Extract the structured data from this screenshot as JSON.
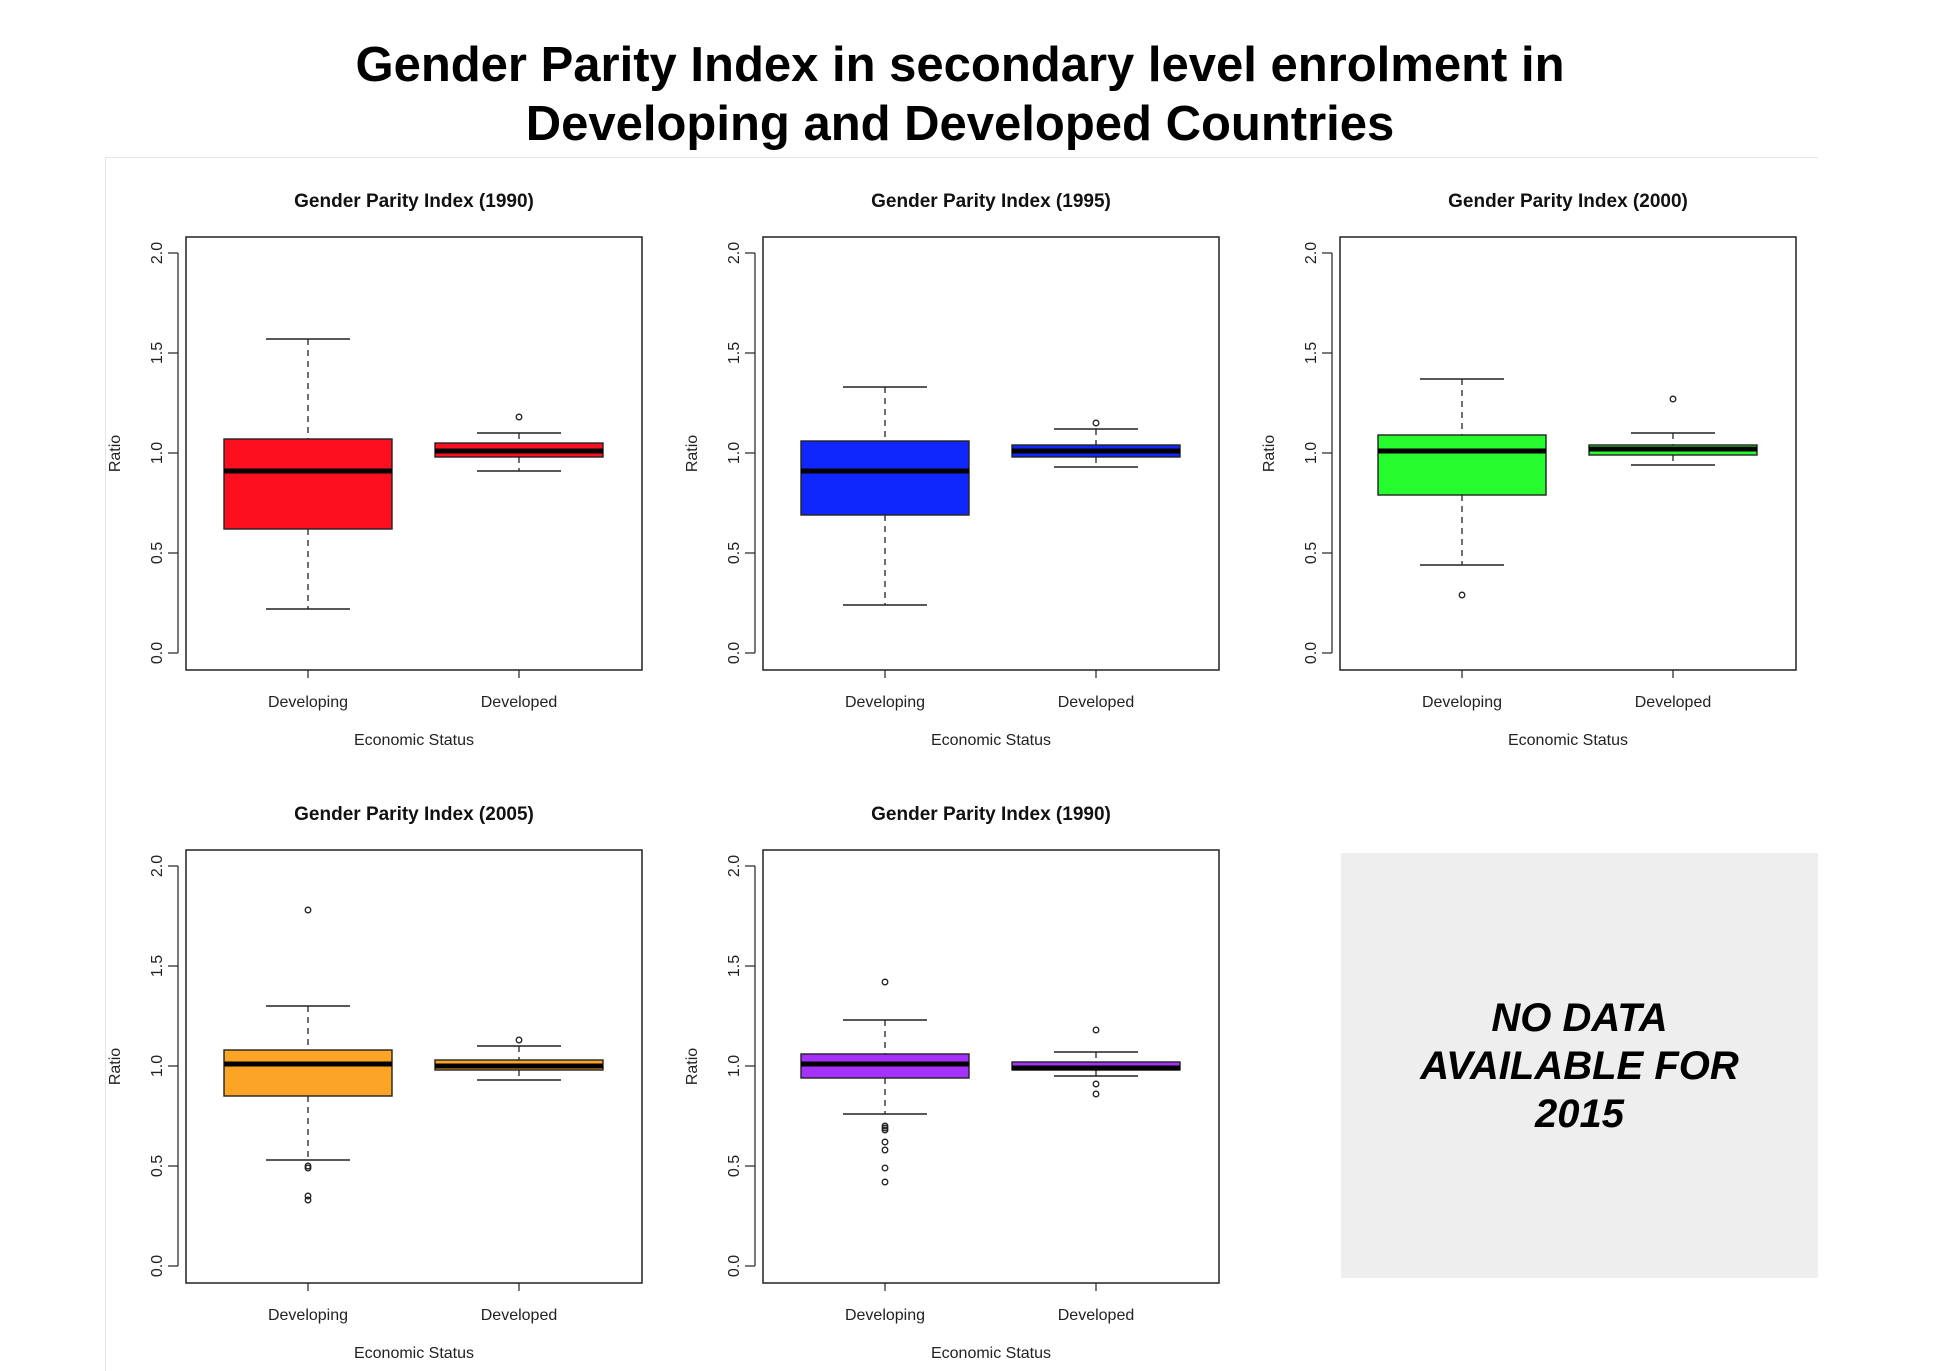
{
  "title": {
    "line1": "Gender Parity Index in secondary level enrolment in",
    "line2": "Developing and Developed Countries"
  },
  "no_data_text": "NO DATA\nAVAILABLE FOR\n2015",
  "chart_data": [
    {
      "type": "boxplot",
      "title": "Gender Parity Index (1990)",
      "xlabel": "Economic Status",
      "ylabel": "Ratio",
      "categories": [
        "Developing",
        "Developed"
      ],
      "ylim": [
        0,
        2
      ],
      "yticks": [
        "0.0",
        "0.5",
        "1.0",
        "1.5",
        "2.0"
      ],
      "fill": "#fc0f1e",
      "boxes": [
        {
          "whisker_low": 0.22,
          "q1": 0.62,
          "median": 0.91,
          "q3": 1.07,
          "whisker_high": 1.57,
          "outliers": []
        },
        {
          "whisker_low": 0.91,
          "q1": 0.98,
          "median": 1.01,
          "q3": 1.05,
          "whisker_high": 1.1,
          "outliers": [
            1.18
          ]
        }
      ]
    },
    {
      "type": "boxplot",
      "title": "Gender Parity Index (1995)",
      "xlabel": "Economic Status",
      "ylabel": "Ratio",
      "categories": [
        "Developing",
        "Developed"
      ],
      "ylim": [
        0,
        2
      ],
      "yticks": [
        "0.0",
        "0.5",
        "1.0",
        "1.5",
        "2.0"
      ],
      "fill": "#0f26fc",
      "boxes": [
        {
          "whisker_low": 0.24,
          "q1": 0.69,
          "median": 0.91,
          "q3": 1.06,
          "whisker_high": 1.33,
          "outliers": []
        },
        {
          "whisker_low": 0.93,
          "q1": 0.98,
          "median": 1.01,
          "q3": 1.04,
          "whisker_high": 1.12,
          "outliers": [
            1.15
          ]
        }
      ]
    },
    {
      "type": "boxplot",
      "title": "Gender Parity Index (2000)",
      "xlabel": "Economic Status",
      "ylabel": "Ratio",
      "categories": [
        "Developing",
        "Developed"
      ],
      "ylim": [
        0,
        2
      ],
      "yticks": [
        "0.0",
        "0.5",
        "1.0",
        "1.5",
        "2.0"
      ],
      "fill": "#27fc2e",
      "boxes": [
        {
          "whisker_low": 0.44,
          "q1": 0.79,
          "median": 1.01,
          "q3": 1.09,
          "whisker_high": 1.37,
          "outliers": [
            0.29
          ]
        },
        {
          "whisker_low": 0.94,
          "q1": 0.99,
          "median": 1.02,
          "q3": 1.04,
          "whisker_high": 1.1,
          "outliers": [
            1.27
          ]
        }
      ]
    },
    {
      "type": "boxplot",
      "title": "Gender Parity Index (2005)",
      "xlabel": "Economic Status",
      "ylabel": "Ratio",
      "categories": [
        "Developing",
        "Developed"
      ],
      "ylim": [
        0,
        2
      ],
      "yticks": [
        "0.0",
        "0.5",
        "1.0",
        "1.5",
        "2.0"
      ],
      "fill": "#fca426",
      "boxes": [
        {
          "whisker_low": 0.53,
          "q1": 0.85,
          "median": 1.01,
          "q3": 1.08,
          "whisker_high": 1.3,
          "outliers": [
            1.78,
            0.5,
            0.49,
            0.35,
            0.33
          ]
        },
        {
          "whisker_low": 0.93,
          "q1": 0.98,
          "median": 1.0,
          "q3": 1.03,
          "whisker_high": 1.1,
          "outliers": [
            1.13
          ]
        }
      ]
    },
    {
      "type": "boxplot",
      "title": "Gender Parity Index (1990)",
      "xlabel": "Economic Status",
      "ylabel": "Ratio",
      "categories": [
        "Developing",
        "Developed"
      ],
      "ylim": [
        0,
        2
      ],
      "yticks": [
        "0.0",
        "0.5",
        "1.0",
        "1.5",
        "2.0"
      ],
      "fill": "#a431fc",
      "boxes": [
        {
          "whisker_low": 0.76,
          "q1": 0.94,
          "median": 1.01,
          "q3": 1.06,
          "whisker_high": 1.23,
          "outliers": [
            1.42,
            0.7,
            0.69,
            0.68,
            0.62,
            0.58,
            0.49,
            0.42
          ]
        },
        {
          "whisker_low": 0.95,
          "q1": 0.98,
          "median": 0.99,
          "q3": 1.02,
          "whisker_high": 1.07,
          "outliers": [
            1.18,
            0.91,
            0.86
          ]
        }
      ]
    }
  ]
}
